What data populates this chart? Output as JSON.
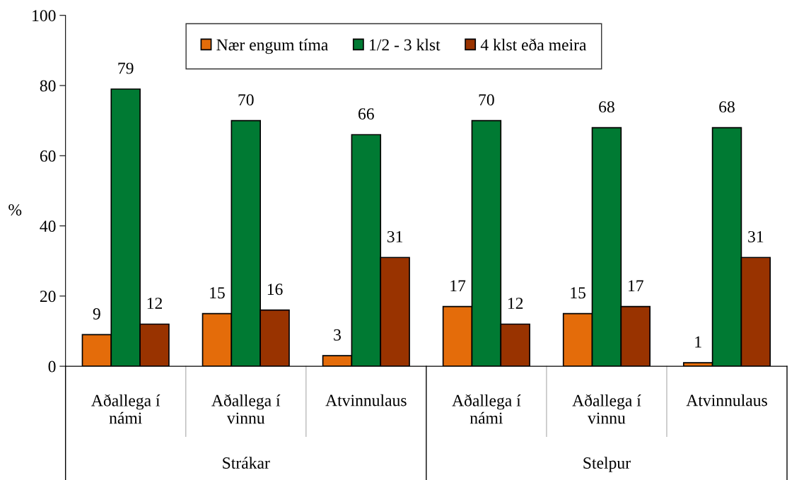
{
  "chart_data": {
    "type": "bar",
    "categories": [
      "Aðallega í námi",
      "Aðallega í vinnu",
      "Atvinnulaus",
      "Aðallega í námi",
      "Aðallega í vinnu",
      "Atvinnulaus"
    ],
    "series": [
      {
        "name": "Nær engum tíma",
        "color": "#e46c0a",
        "values": [
          9,
          15,
          3,
          17,
          15,
          1
        ]
      },
      {
        "name": "1/2 - 3 klst",
        "color": "#007a33",
        "values": [
          79,
          70,
          66,
          70,
          68,
          68
        ]
      },
      {
        "name": "4 klst eða meira",
        "color": "#993300",
        "values": [
          12,
          16,
          31,
          12,
          17,
          31
        ]
      }
    ],
    "annotations": [
      "Strákar",
      "Stelpur"
    ],
    "ylabel": "%",
    "ylim": [
      0,
      100
    ],
    "yticks": [
      0,
      20,
      40,
      60,
      80,
      100
    ],
    "data_labels": true,
    "legend": "top",
    "grid": false
  }
}
